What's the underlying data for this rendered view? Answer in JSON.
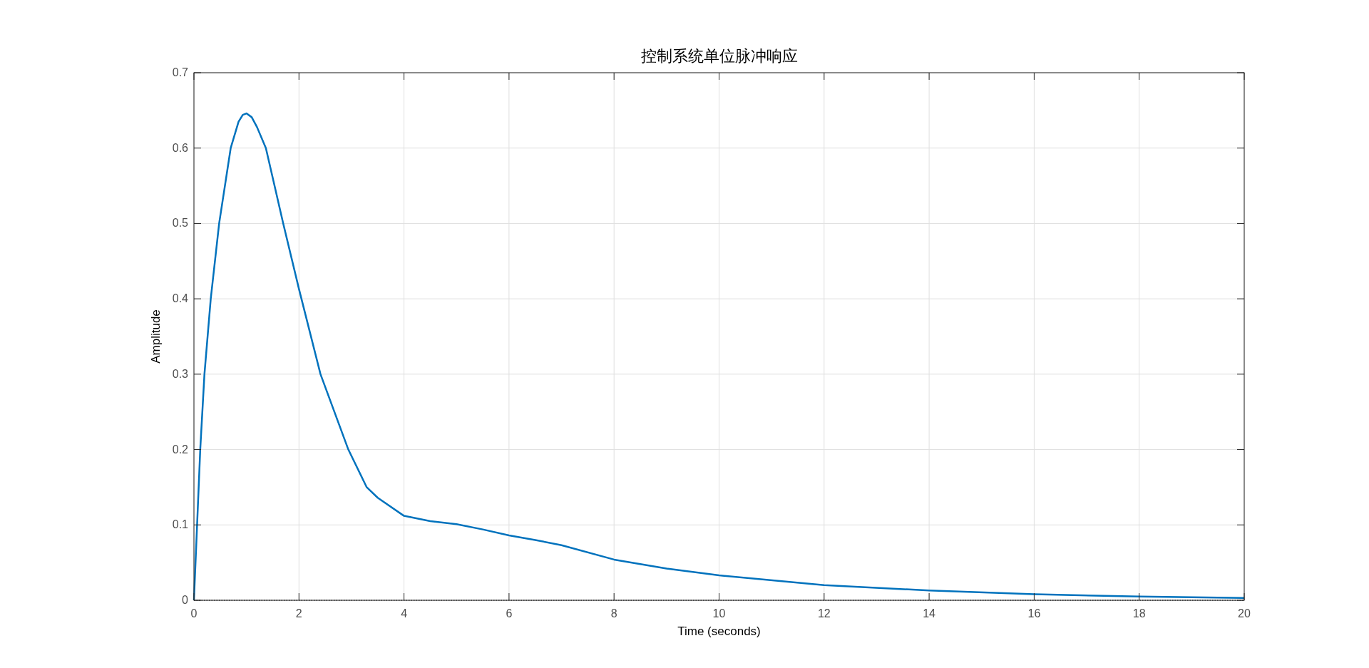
{
  "chart_data": {
    "type": "line",
    "title": "控制系统单位脉冲响应",
    "xlabel": "Time (seconds)",
    "ylabel": "Amplitude",
    "x": [
      0,
      0.12,
      0.2,
      0.32,
      0.48,
      0.7,
      0.85,
      0.93,
      1.0,
      1.1,
      1.2,
      1.37,
      1.7,
      2.0,
      2.41,
      2.94,
      3.29,
      3.5,
      4,
      4.5,
      5,
      5.5,
      6,
      6.5,
      7,
      8,
      9,
      10,
      12,
      14,
      16,
      18,
      20
    ],
    "series": [
      {
        "color": "#0072bd",
        "values": [
          0,
          0.2,
          0.3,
          0.4,
          0.5,
          0.6,
          0.635,
          0.644,
          0.646,
          0.641,
          0.628,
          0.6,
          0.5,
          0.413,
          0.3,
          0.2,
          0.15,
          0.136,
          0.112,
          0.105,
          0.101,
          0.094,
          0.086,
          0.08,
          0.073,
          0.054,
          0.042,
          0.033,
          0.02,
          0.013,
          0.008,
          0.005,
          0.003
        ]
      }
    ],
    "xlim": [
      0,
      20
    ],
    "ylim": [
      0,
      0.7
    ],
    "xticks": [
      0,
      2,
      4,
      6,
      8,
      10,
      12,
      14,
      16,
      18,
      20
    ],
    "yticks": [
      0,
      0.1,
      0.2,
      0.3,
      0.4,
      0.5,
      0.6,
      0.7
    ],
    "grid": true,
    "line_style": "solid",
    "ref_lines": [
      {
        "axis": "y",
        "value": 0,
        "color": "#000000",
        "line_style": "dotted"
      }
    ]
  }
}
